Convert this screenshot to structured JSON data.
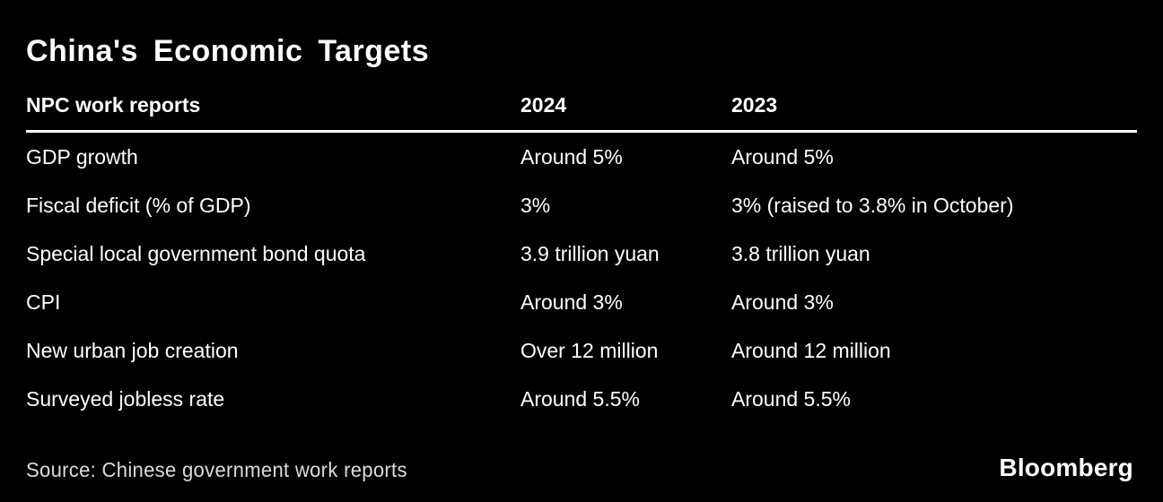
{
  "title": "China's Economic Targets",
  "table": {
    "columns": [
      "NPC work reports",
      "2024",
      "2023"
    ],
    "rows": [
      {
        "label": "GDP growth",
        "v2024": "Around 5%",
        "v2023": "Around 5%"
      },
      {
        "label": "Fiscal deficit (% of GDP)",
        "v2024": "3%",
        "v2023": "3% (raised to 3.8% in October)"
      },
      {
        "label": "Special local government bond quota",
        "v2024": "3.9 trillion yuan",
        "v2023": "3.8 trillion yuan"
      },
      {
        "label": "CPI",
        "v2024": "Around 3%",
        "v2023": "Around 3%"
      },
      {
        "label": "New urban job creation",
        "v2024": "Over 12 million",
        "v2023": "Around 12 million"
      },
      {
        "label": "Surveyed jobless rate",
        "v2024": "Around 5.5%",
        "v2023": "Around 5.5%"
      }
    ]
  },
  "source": "Source: Chinese government work reports",
  "branding": "Bloomberg",
  "colors": {
    "background": "#000000",
    "text": "#ffffff",
    "rule": "#ffffff",
    "source_text": "#dcdcdc"
  },
  "chart_data": {
    "type": "table",
    "title": "China's Economic Targets",
    "subtitle": "NPC work reports",
    "columns": [
      "NPC work reports",
      "2024",
      "2023"
    ],
    "rows": [
      [
        "GDP growth",
        "Around 5%",
        "Around 5%"
      ],
      [
        "Fiscal deficit (% of GDP)",
        "3%",
        "3% (raised to 3.8% in October)"
      ],
      [
        "Special local government bond quota",
        "3.9 trillion yuan",
        "3.8 trillion yuan"
      ],
      [
        "CPI",
        "Around 3%",
        "Around 3%"
      ],
      [
        "New urban job creation",
        "Over 12 million",
        "Around 12 million"
      ],
      [
        "Surveyed jobless rate",
        "Around 5.5%",
        "Around 5.5%"
      ]
    ],
    "source": "Chinese government work reports",
    "branding": "Bloomberg"
  }
}
